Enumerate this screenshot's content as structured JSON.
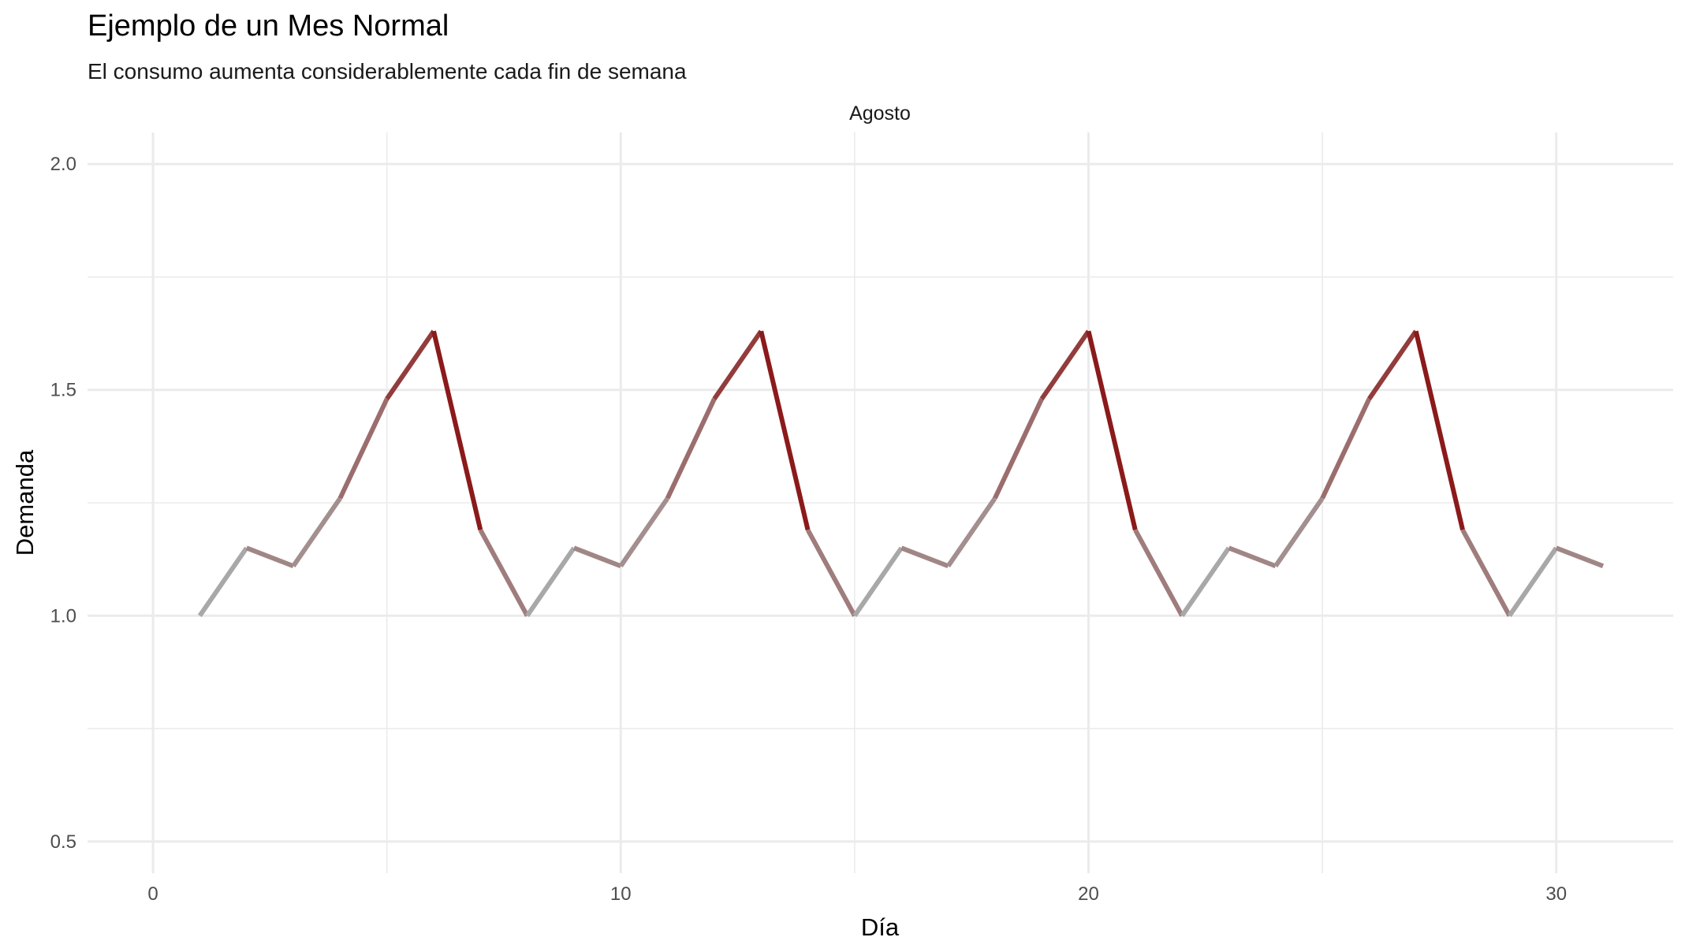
{
  "chart_data": {
    "type": "line",
    "title": "Ejemplo de un Mes Normal",
    "subtitle": "El consumo aumenta considerablemente cada fin de semana",
    "facet_label": "Agosto",
    "xlabel": "Día",
    "ylabel": "Demanda",
    "xlim": [
      -1.4,
      32.5
    ],
    "ylim": [
      0.43,
      2.07
    ],
    "x_ticks": [
      0,
      10,
      20,
      30
    ],
    "x_tick_labels": [
      "0",
      "10",
      "20",
      "30"
    ],
    "x_minor_ticks": [
      5,
      15,
      25
    ],
    "y_ticks": [
      0.5,
      1.0,
      1.5,
      2.0
    ],
    "y_tick_labels": [
      "0.5",
      "1.0",
      "1.5",
      "2.0"
    ],
    "y_minor_ticks": [
      0.75,
      1.25,
      1.75
    ],
    "grid": true,
    "legend": "none",
    "colors": {
      "low": "#a8a8a8",
      "high": "#8b1a1a",
      "grid": "#ebebeb"
    },
    "series": [
      {
        "x": [
          1,
          2,
          3,
          4,
          5,
          6,
          7,
          8,
          9,
          10,
          11,
          12,
          13,
          14,
          15,
          16,
          17,
          18,
          19,
          20,
          21,
          22,
          23,
          24,
          25,
          26,
          27,
          28,
          29,
          30,
          31
        ],
        "values": [
          1.0,
          1.15,
          1.11,
          1.26,
          1.48,
          1.63,
          1.19,
          1.0,
          1.15,
          1.11,
          1.26,
          1.48,
          1.63,
          1.19,
          1.0,
          1.15,
          1.11,
          1.26,
          1.48,
          1.63,
          1.19,
          1.0,
          1.15,
          1.11,
          1.26,
          1.48,
          1.63,
          1.19,
          1.0,
          1.15,
          1.11
        ]
      }
    ]
  }
}
